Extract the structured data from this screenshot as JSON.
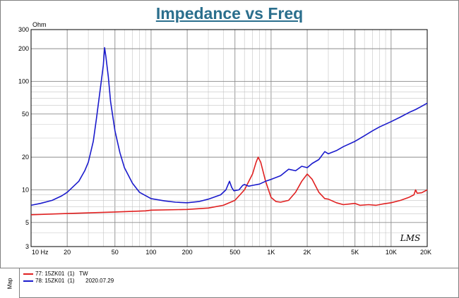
{
  "header": {
    "title": "Impedance vs Freq"
  },
  "chart_data": {
    "type": "line",
    "title": "Impedance vs Freq",
    "ylabel": "Ohm",
    "xlabel": "",
    "x_scale": "log",
    "y_scale": "log",
    "xlim": [
      10,
      20000
    ],
    "ylim": [
      3,
      300
    ],
    "grid": true,
    "x_ticks": [
      {
        "v": 10,
        "label": "10 Hz"
      },
      {
        "v": 20,
        "label": "20"
      },
      {
        "v": 50,
        "label": "50"
      },
      {
        "v": 100,
        "label": "100"
      },
      {
        "v": 200,
        "label": "200"
      },
      {
        "v": 500,
        "label": "500"
      },
      {
        "v": 1000,
        "label": "1K"
      },
      {
        "v": 2000,
        "label": "2K"
      },
      {
        "v": 5000,
        "label": "5K"
      },
      {
        "v": 10000,
        "label": "10K"
      },
      {
        "v": 20000,
        "label": "20K"
      }
    ],
    "y_ticks": [
      {
        "v": 3,
        "label": "3"
      },
      {
        "v": 5,
        "label": "5"
      },
      {
        "v": 10,
        "label": "10"
      },
      {
        "v": 20,
        "label": "20"
      },
      {
        "v": 50,
        "label": "50"
      },
      {
        "v": 100,
        "label": "100"
      },
      {
        "v": 200,
        "label": "200"
      },
      {
        "v": 300,
        "label": "300"
      }
    ],
    "series": [
      {
        "name": "77: 15ZK01  (1)   TW",
        "color": "#e02020",
        "points": [
          [
            10,
            5.9
          ],
          [
            20,
            6.05
          ],
          [
            50,
            6.25
          ],
          [
            90,
            6.4
          ],
          [
            100,
            6.5
          ],
          [
            200,
            6.6
          ],
          [
            300,
            6.8
          ],
          [
            400,
            7.2
          ],
          [
            500,
            8.0
          ],
          [
            600,
            10
          ],
          [
            700,
            14
          ],
          [
            750,
            18
          ],
          [
            780,
            20
          ],
          [
            820,
            18
          ],
          [
            900,
            12
          ],
          [
            1000,
            8.5
          ],
          [
            1100,
            7.8
          ],
          [
            1200,
            7.7
          ],
          [
            1400,
            8.0
          ],
          [
            1600,
            9.5
          ],
          [
            1800,
            12
          ],
          [
            2000,
            14
          ],
          [
            2200,
            12.5
          ],
          [
            2500,
            9.5
          ],
          [
            2800,
            8.3
          ],
          [
            3000,
            8.2
          ],
          [
            3500,
            7.6
          ],
          [
            4000,
            7.3
          ],
          [
            4500,
            7.4
          ],
          [
            5000,
            7.5
          ],
          [
            5500,
            7.2
          ],
          [
            6500,
            7.3
          ],
          [
            7500,
            7.2
          ],
          [
            8500,
            7.4
          ],
          [
            10000,
            7.6
          ],
          [
            12000,
            8.0
          ],
          [
            14000,
            8.5
          ],
          [
            15500,
            9.0
          ],
          [
            16000,
            10
          ],
          [
            16500,
            9.3
          ],
          [
            18000,
            9.4
          ],
          [
            20000,
            10
          ]
        ]
      },
      {
        "name": "78: 15ZK01  (1)       2020.07.29",
        "color": "#1a1acc",
        "points": [
          [
            10,
            7.2
          ],
          [
            12,
            7.5
          ],
          [
            15,
            8.0
          ],
          [
            18,
            8.8
          ],
          [
            20,
            9.5
          ],
          [
            25,
            12
          ],
          [
            28,
            15
          ],
          [
            30,
            18
          ],
          [
            33,
            28
          ],
          [
            35,
            45
          ],
          [
            38,
            90
          ],
          [
            40,
            140
          ],
          [
            41,
            205
          ],
          [
            42,
            170
          ],
          [
            44,
            110
          ],
          [
            46,
            65
          ],
          [
            50,
            35
          ],
          [
            55,
            22
          ],
          [
            60,
            16
          ],
          [
            70,
            11.5
          ],
          [
            80,
            9.5
          ],
          [
            100,
            8.3
          ],
          [
            130,
            7.9
          ],
          [
            160,
            7.7
          ],
          [
            200,
            7.6
          ],
          [
            250,
            7.8
          ],
          [
            300,
            8.2
          ],
          [
            380,
            9.0
          ],
          [
            420,
            10
          ],
          [
            450,
            12
          ],
          [
            470,
            10.5
          ],
          [
            490,
            9.8
          ],
          [
            540,
            10
          ],
          [
            580,
            11
          ],
          [
            600,
            11.2
          ],
          [
            650,
            10.8
          ],
          [
            700,
            11
          ],
          [
            800,
            11.3
          ],
          [
            900,
            12
          ],
          [
            1000,
            12.5
          ],
          [
            1200,
            13.5
          ],
          [
            1400,
            15.5
          ],
          [
            1600,
            15
          ],
          [
            1800,
            16.5
          ],
          [
            2000,
            16
          ],
          [
            2200,
            17.5
          ],
          [
            2500,
            19
          ],
          [
            2800,
            22.5
          ],
          [
            3000,
            21.5
          ],
          [
            3500,
            23
          ],
          [
            4000,
            25
          ],
          [
            5000,
            28
          ],
          [
            6000,
            31.5
          ],
          [
            7000,
            35
          ],
          [
            8000,
            38
          ],
          [
            10000,
            42.5
          ],
          [
            12000,
            47
          ],
          [
            14000,
            51.5
          ],
          [
            16000,
            55
          ],
          [
            18000,
            59
          ],
          [
            20000,
            63
          ]
        ]
      }
    ],
    "annotations": [
      "LMS"
    ]
  },
  "map_panel": {
    "label": "Map",
    "rows": [
      {
        "text": "77: 15ZK01  (1)   TW",
        "color": "#e02020"
      },
      {
        "text": "78: 15ZK01  (1)       2020.07.29",
        "color": "#1a1acc"
      }
    ]
  }
}
